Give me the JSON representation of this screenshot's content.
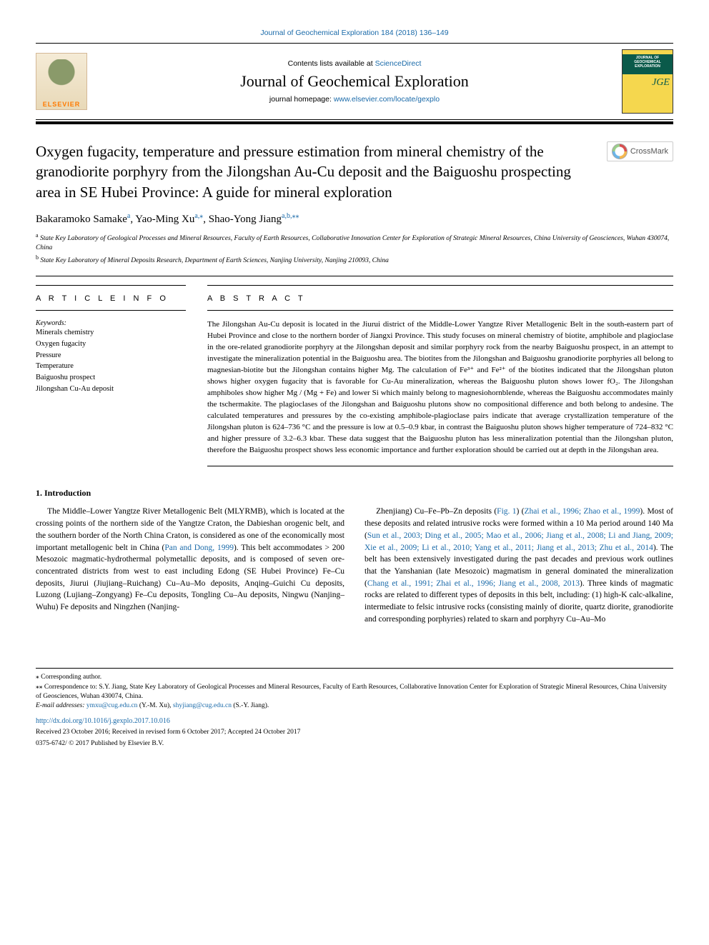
{
  "header": {
    "journal_ref": "Journal of Geochemical Exploration 184 (2018) 136–149",
    "contents_prefix": "Contents lists available at ",
    "contents_link": "ScienceDirect",
    "journal_name": "Journal of Geochemical Exploration",
    "homepage_prefix": "journal homepage: ",
    "homepage_link": "www.elsevier.com/locate/gexplo",
    "elsevier_label": "ELSEVIER",
    "cover_text": "JOURNAL OF GEOCHEMICAL EXPLORATION",
    "cover_abbr": "JGE",
    "crossmark_label": "CrossMark"
  },
  "article": {
    "title": "Oxygen fugacity, temperature and pressure estimation from mineral chemistry of the granodiorite porphyry from the Jilongshan Au-Cu deposit and the Baiguoshu prospecting area in SE Hubei Province: A guide for mineral exploration",
    "authors_html": "Bakaramoko Samake<sup class=\"author-sup\">a</sup>, Yao-Ming Xu<sup class=\"author-sup\">a,</sup><sup class=\"author-sup\">⁎</sup>, Shao-Yong Jiang<sup class=\"author-sup\">a,b,</sup><sup class=\"author-sup\">⁎⁎</sup>",
    "affiliations": [
      {
        "sup": "a",
        "text": "State Key Laboratory of Geological Processes and Mineral Resources, Faculty of Earth Resources, Collaborative Innovation Center for Exploration of Strategic Mineral Resources, China University of Geosciences, Wuhan 430074, China"
      },
      {
        "sup": "b",
        "text": "State Key Laboratory of Mineral Deposits Research, Department of Earth Sciences, Nanjing University, Nanjing 210093, China"
      }
    ]
  },
  "info": {
    "heading": "A R T I C L E  I N F O",
    "keywords_label": "Keywords:",
    "keywords": [
      "Minerals chemistry",
      "Oxygen fugacity",
      "Pressure",
      "Temperature",
      "Baiguoshu prospect",
      "Jilongshan Cu-Au deposit"
    ]
  },
  "abstract": {
    "heading": "A B S T R A C T",
    "text": "The Jilongshan Au-Cu deposit is located in the Jiurui district of the Middle-Lower Yangtze River Metallogenic Belt in the south-eastern part of Hubei Province and close to the northern border of Jiangxi Province. This study focuses on mineral chemistry of biotite, amphibole and plagioclase in the ore-related granodiorite porphyry at the Jilongshan deposit and similar porphyry rock from the nearby Baiguoshu prospect, in an attempt to investigate the mineralization potential in the Baiguoshu area. The biotites from the Jilongshan and Baiguoshu granodiorite porphyries all belong to magnesian-biotite but the Jilongshan contains higher Mg. The calculation of Fe³⁺ and Fe²⁺ of the biotites indicated that the Jilongshan pluton shows higher oxygen fugacity that is favorable for Cu-Au mineralization, whereas the Baiguoshu pluton shows lower fO₂. The Jilongshan amphiboles show higher Mg / (Mg + Fe) and lower Si which mainly belong to magnesiohornblende, whereas the Baiguoshu accommodates mainly the tschermakite. The plagioclases of the Jilongshan and Baiguoshu plutons show no compositional difference and both belong to andesine. The calculated temperatures and pressures by the co-existing amphibole-plagioclase pairs indicate that average crystallization temperature of the Jilongshan pluton is 624–736 °C and the pressure is low at 0.5–0.9 kbar, in contrast the Baiguoshu pluton shows higher temperature of 724–832 °C and higher pressure of 3.2–6.3 kbar. These data suggest that the Baiguoshu pluton has less mineralization potential than the Jilongshan pluton, therefore the Baiguoshu prospect shows less economic importance and further exploration should be carried out at depth in the Jilongshan area."
  },
  "body": {
    "section_heading": "1. Introduction",
    "col1": "The Middle–Lower Yangtze River Metallogenic Belt (MLYRMB), which is located at the crossing points of the northern side of the Yangtze Craton, the Dabieshan orogenic belt, and the southern border of the North China Craton, is considered as one of the economically most important metallogenic belt in China (<span class=\"ref-link\">Pan and Dong, 1999</span>). This belt accommodates > 200 Mesozoic magmatic-hydrothermal polymetallic deposits, and is composed of seven ore-concentrated districts from west to east including Edong (SE Hubei Province) Fe–Cu deposits, Jiurui (Jiujiang–Ruichang) Cu–Au–Mo deposits, Anqing–Guichi Cu deposits, Luzong (Lujiang–Zongyang) Fe–Cu deposits, Tongling Cu–Au deposits, Ningwu (Nanjing–Wuhu) Fe deposits and Ningzhen (Nanjing-",
    "col2": "Zhenjiang) Cu–Fe–Pb–Zn deposits (<span class=\"ref-link\">Fig. 1</span>) (<span class=\"ref-link\">Zhai et al., 1996; Zhao et al., 1999</span>). Most of these deposits and related intrusive rocks were formed within a 10 Ma period around 140 Ma (<span class=\"ref-link\">Sun et al., 2003; Ding et al., 2005; Mao et al., 2006; Jiang et al., 2008; Li and Jiang, 2009; Xie et al., 2009; Li et al., 2010; Yang et al., 2011; Jiang et al., 2013; Zhu et al., 2014</span>). The belt has been extensively investigated during the past decades and previous work outlines that the Yanshanian (late Mesozoic) magmatism in general dominated the mineralization (<span class=\"ref-link\">Chang et al., 1991; Zhai et al., 1996; Jiang et al., 2008, 2013</span>). Three kinds of magmatic rocks are related to different types of deposits in this belt, including: (1) high-K calc-alkaline, intermediate to felsic intrusive rocks (consisting mainly of diorite, quartz diorite, granodiorite and corresponding porphyries) related to skarn and porphyry Cu–Au–Mo"
  },
  "footnotes": {
    "corr1": "⁎ Corresponding author.",
    "corr2": "⁎⁎ Correspondence to: S.Y. Jiang, State Key Laboratory of Geological Processes and Mineral Resources, Faculty of Earth Resources, Collaborative Innovation Center for Exploration of Strategic Mineral Resources, China University of Geosciences, Wuhan 430074, China.",
    "email_label": "E-mail addresses:",
    "email1": "ymxu@cug.edu.cn",
    "email1_name": "(Y.-M. Xu),",
    "email2": "shyjiang@cug.edu.cn",
    "email2_name": "(S.-Y. Jiang).",
    "doi": "http://dx.doi.org/10.1016/j.gexplo.2017.10.016",
    "received": "Received 23 October 2016; Received in revised form 6 October 2017; Accepted 24 October 2017",
    "copyright": "0375-6742/ © 2017 Published by Elsevier B.V."
  },
  "colors": {
    "link": "#1a6aa9",
    "elsevier_orange": "#ff7a00",
    "cover_yellow": "#f5d74e",
    "cover_green": "#0a5a4a"
  }
}
